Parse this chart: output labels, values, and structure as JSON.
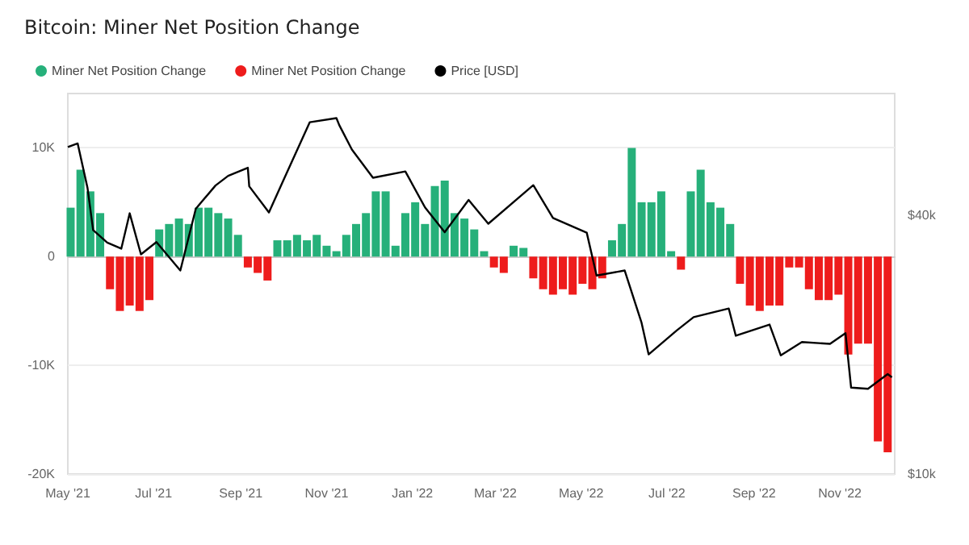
{
  "chart_data": {
    "type": "bar",
    "title": "Bitcoin: Miner Net Position Change",
    "x": [
      "2021-05-03",
      "2021-05-10",
      "2021-05-17",
      "2021-05-24",
      "2021-05-31",
      "2021-06-07",
      "2021-06-14",
      "2021-06-21",
      "2021-06-28",
      "2021-07-05",
      "2021-07-12",
      "2021-07-19",
      "2021-07-26",
      "2021-08-02",
      "2021-08-09",
      "2021-08-16",
      "2021-08-23",
      "2021-08-30",
      "2021-09-06",
      "2021-09-13",
      "2021-09-20",
      "2021-09-27",
      "2021-10-04",
      "2021-10-11",
      "2021-10-18",
      "2021-10-25",
      "2021-11-01",
      "2021-11-08",
      "2021-11-15",
      "2021-11-22",
      "2021-11-29",
      "2021-12-06",
      "2021-12-13",
      "2021-12-20",
      "2021-12-27",
      "2022-01-03",
      "2022-01-10",
      "2022-01-17",
      "2022-01-24",
      "2022-01-31",
      "2022-02-07",
      "2022-02-14",
      "2022-02-21",
      "2022-02-28",
      "2022-03-07",
      "2022-03-14",
      "2022-03-21",
      "2022-03-28",
      "2022-04-04",
      "2022-04-11",
      "2022-04-18",
      "2022-04-25",
      "2022-05-02",
      "2022-05-09",
      "2022-05-16",
      "2022-05-23",
      "2022-05-30",
      "2022-06-06",
      "2022-06-13",
      "2022-06-20",
      "2022-06-27",
      "2022-07-04",
      "2022-07-11",
      "2022-07-18",
      "2022-07-25",
      "2022-08-01",
      "2022-08-08",
      "2022-08-15",
      "2022-08-22",
      "2022-08-29",
      "2022-09-05",
      "2022-09-12",
      "2022-09-19",
      "2022-09-26",
      "2022-10-03",
      "2022-10-10",
      "2022-10-17",
      "2022-10-24",
      "2022-10-31",
      "2022-11-07",
      "2022-11-14",
      "2022-11-21",
      "2022-11-28",
      "2022-12-05"
    ],
    "series": [
      {
        "name": "Miner Net Position Change",
        "color": "#26b07a",
        "values": [
          4500,
          8000,
          6000,
          4000,
          null,
          null,
          null,
          null,
          null,
          2500,
          3000,
          3500,
          3000,
          4500,
          4500,
          4000,
          3500,
          2000,
          null,
          null,
          null,
          1500,
          1500,
          2000,
          1500,
          2000,
          1000,
          500,
          2000,
          3000,
          4000,
          6000,
          6000,
          1000,
          4000,
          5000,
          3000,
          6500,
          7000,
          4000,
          3500,
          2500,
          500,
          null,
          null,
          1000,
          800,
          null,
          null,
          null,
          null,
          null,
          null,
          null,
          null,
          1500,
          3000,
          10000,
          5000,
          5000,
          6000,
          500,
          null,
          6000,
          8000,
          5000,
          4500,
          3000,
          null,
          null,
          null,
          null,
          null,
          null,
          null,
          null,
          null,
          null,
          null,
          null,
          null,
          null,
          null,
          null
        ]
      },
      {
        "name": "Miner Net Position Change",
        "color": "#ee1c1c",
        "values": [
          null,
          null,
          null,
          null,
          -3000,
          -5000,
          -4500,
          -5000,
          -4000,
          null,
          null,
          null,
          null,
          null,
          null,
          null,
          null,
          null,
          -1000,
          -1500,
          -2200,
          null,
          null,
          null,
          null,
          null,
          null,
          null,
          null,
          null,
          null,
          null,
          null,
          null,
          null,
          null,
          null,
          null,
          null,
          null,
          null,
          null,
          null,
          -1000,
          -1500,
          null,
          null,
          -2000,
          -3000,
          -3500,
          -3000,
          -3500,
          -2500,
          -3000,
          -2000,
          null,
          null,
          null,
          null,
          null,
          null,
          null,
          -1200,
          null,
          null,
          null,
          null,
          null,
          -2500,
          -4500,
          -5000,
          -4500,
          -4500,
          -1000,
          -1000,
          -3000,
          -4000,
          -4000,
          -3500,
          -9000,
          -8000,
          -8000,
          -17000,
          -18000
        ]
      },
      {
        "name": "Price [USD]",
        "type": "line",
        "axis": "y2",
        "color": "#000000",
        "x": [
          "2021-05-01",
          "2021-05-08",
          "2021-05-15",
          "2021-05-19",
          "2021-05-29",
          "2021-06-08",
          "2021-06-14",
          "2021-06-22",
          "2021-07-03",
          "2021-07-20",
          "2021-07-31",
          "2021-08-14",
          "2021-08-23",
          "2021-09-06",
          "2021-09-07",
          "2021-09-21",
          "2021-10-01",
          "2021-10-20",
          "2021-11-08",
          "2021-11-10",
          "2021-11-19",
          "2021-12-04",
          "2021-12-27",
          "2022-01-10",
          "2022-01-24",
          "2022-02-10",
          "2022-02-24",
          "2022-03-28",
          "2022-04-11",
          "2022-05-05",
          "2022-05-12",
          "2022-06-01",
          "2022-06-13",
          "2022-06-18",
          "2022-07-08",
          "2022-07-20",
          "2022-08-14",
          "2022-08-19",
          "2022-09-12",
          "2022-09-20",
          "2022-10-05",
          "2022-10-25",
          "2022-11-05",
          "2022-11-09",
          "2022-11-21",
          "2022-12-05",
          "2022-12-08"
        ],
        "values": [
          57800,
          58900,
          46400,
          37000,
          34600,
          33500,
          40500,
          32500,
          34700,
          29800,
          41500,
          47000,
          49500,
          51700,
          46800,
          40700,
          48100,
          66000,
          67500,
          65000,
          57000,
          49000,
          50700,
          41800,
          36600,
          43500,
          38300,
          47100,
          39500,
          36500,
          29000,
          29800,
          22500,
          19000,
          21600,
          23200,
          24300,
          21000,
          22300,
          18900,
          20300,
          20100,
          21300,
          15900,
          15800,
          17100,
          16800
        ]
      }
    ],
    "xlim": [
      "2021-05-01",
      "2022-12-10"
    ],
    "xticks": [
      {
        "value": "2021-05-01",
        "label": "May '21"
      },
      {
        "value": "2021-07-01",
        "label": "Jul '21"
      },
      {
        "value": "2021-09-01",
        "label": "Sep '21"
      },
      {
        "value": "2021-11-01",
        "label": "Nov '21"
      },
      {
        "value": "2022-01-01",
        "label": "Jan '22"
      },
      {
        "value": "2022-03-01",
        "label": "Mar '22"
      },
      {
        "value": "2022-05-01",
        "label": "May '22"
      },
      {
        "value": "2022-07-01",
        "label": "Jul '22"
      },
      {
        "value": "2022-09-01",
        "label": "Sep '22"
      },
      {
        "value": "2022-11-01",
        "label": "Nov '22"
      }
    ],
    "ylim": [
      -20000,
      15000
    ],
    "yticks": [
      {
        "value": 10000,
        "label": "10K"
      },
      0,
      {
        "value": -10000,
        "label": "-10K"
      },
      {
        "value": -20000,
        "label": "-20K"
      }
    ],
    "y2lim": [
      10000,
      77000
    ],
    "log": "y2",
    "y2ticks": [
      {
        "value": 10000,
        "label": "$10k"
      },
      {
        "value": 40000,
        "label": "$40k"
      }
    ],
    "grid": "y",
    "legend": "top left",
    "marker": "none",
    "line_style": "solid"
  }
}
